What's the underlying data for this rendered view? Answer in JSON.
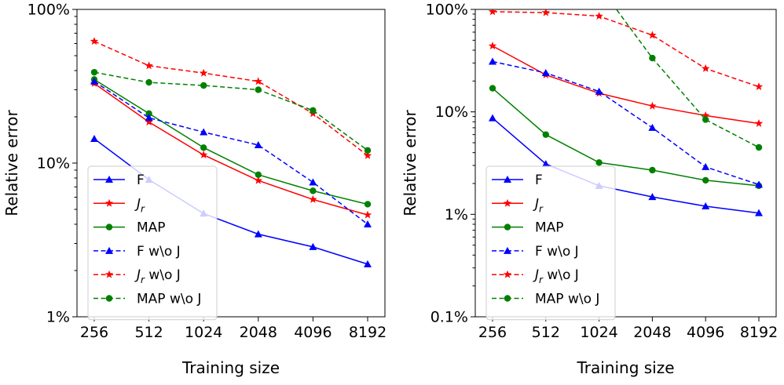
{
  "chart_data": [
    {
      "type": "line",
      "xlabel": "Training size",
      "ylabel": "Relative error",
      "yscale": "log",
      "ylim": [
        0.01,
        1.0
      ],
      "x": [
        256,
        512,
        1024,
        2048,
        4096,
        8192
      ],
      "x_tick_labels": [
        "256",
        "512",
        "1024",
        "2048",
        "4096",
        "8192"
      ],
      "y_ticks": [
        0.01,
        0.1,
        1.0
      ],
      "y_tick_labels": [
        "1%",
        "10%",
        "100%"
      ],
      "grid": false,
      "legend_position": "lower-left",
      "series": [
        {
          "name": "F",
          "color": "#0000ff",
          "style": "solid",
          "marker": "triangle",
          "values": [
            0.144,
            0.078,
            0.047,
            0.0345,
            0.0285,
            0.022
          ]
        },
        {
          "name": "J_r",
          "color": "#ff0000",
          "style": "solid",
          "marker": "star",
          "values": [
            0.33,
            0.185,
            0.113,
            0.077,
            0.058,
            0.046
          ]
        },
        {
          "name": "MAP",
          "color": "#008000",
          "style": "solid",
          "marker": "circle",
          "values": [
            0.35,
            0.21,
            0.126,
            0.084,
            0.066,
            0.054
          ]
        },
        {
          "name": "F w\\o J",
          "color": "#0000ff",
          "style": "dashed",
          "marker": "triangle",
          "values": [
            0.34,
            0.197,
            0.159,
            0.131,
            0.075,
            0.04
          ]
        },
        {
          "name": "J_r w\\o J",
          "color": "#ff0000",
          "style": "dashed",
          "marker": "star",
          "values": [
            0.62,
            0.43,
            0.385,
            0.34,
            0.21,
            0.112
          ]
        },
        {
          "name": "MAP w\\o J",
          "color": "#008000",
          "style": "dashed",
          "marker": "circle",
          "values": [
            0.39,
            0.335,
            0.32,
            0.3,
            0.22,
            0.121
          ]
        }
      ]
    },
    {
      "type": "line",
      "xlabel": "Training size",
      "ylabel": "Relative error",
      "yscale": "log",
      "ylim": [
        0.001,
        1.0
      ],
      "x": [
        256,
        512,
        1024,
        2048,
        4096,
        8192
      ],
      "x_tick_labels": [
        "256",
        "512",
        "1024",
        "2048",
        "4096",
        "8192"
      ],
      "y_ticks": [
        0.001,
        0.01,
        0.1,
        1.0
      ],
      "y_tick_labels": [
        "0.1%",
        "1%",
        "10%",
        "100%"
      ],
      "grid": false,
      "legend_position": "lower-left",
      "series": [
        {
          "name": "F",
          "color": "#0000ff",
          "style": "solid",
          "marker": "triangle",
          "values": [
            0.087,
            0.031,
            0.019,
            0.0148,
            0.012,
            0.0103
          ]
        },
        {
          "name": "J_r",
          "color": "#ff0000",
          "style": "solid",
          "marker": "star",
          "values": [
            0.44,
            0.23,
            0.152,
            0.114,
            0.092,
            0.077
          ]
        },
        {
          "name": "MAP",
          "color": "#008000",
          "style": "solid",
          "marker": "circle",
          "values": [
            0.17,
            0.06,
            0.032,
            0.027,
            0.0215,
            0.019
          ]
        },
        {
          "name": "F w\\o J",
          "color": "#0000ff",
          "style": "dashed",
          "marker": "triangle",
          "values": [
            0.31,
            0.24,
            0.158,
            0.07,
            0.029,
            0.0195
          ]
        },
        {
          "name": "J_r w\\o J",
          "color": "#ff0000",
          "style": "dashed",
          "marker": "star",
          "values": [
            0.95,
            0.93,
            0.86,
            0.56,
            0.265,
            0.176
          ]
        },
        {
          "name": "MAP w\\o J",
          "color": "#008000",
          "style": "dashed",
          "marker": "circle",
          "values": [
            null,
            null,
            1.7,
            0.335,
            0.084,
            0.045
          ]
        }
      ]
    }
  ]
}
